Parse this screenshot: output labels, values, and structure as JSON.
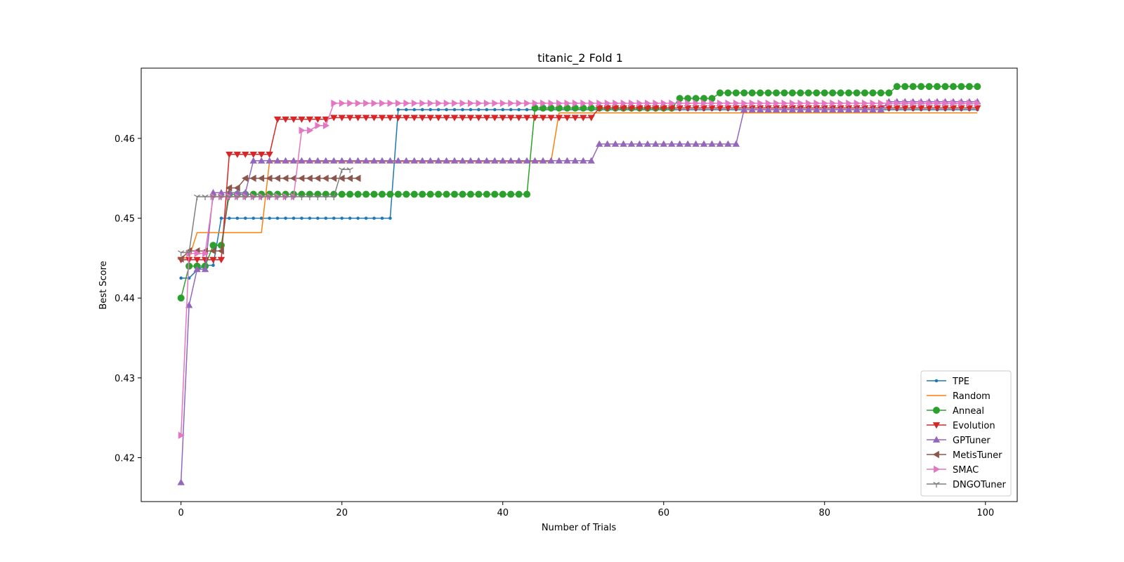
{
  "chart_data": {
    "type": "line",
    "title": "titanic_2 Fold 1",
    "xlabel": "Number of Trials",
    "ylabel": "Best Score",
    "xlim": [
      -4.95,
      103.95
    ],
    "ylim": [
      0.4145,
      0.4688
    ],
    "xticks": [
      0,
      20,
      40,
      60,
      80,
      100
    ],
    "yticks": [
      0.42,
      0.43,
      0.44,
      0.45,
      0.46
    ],
    "ytick_labels": [
      "0.42",
      "0.43",
      "0.44",
      "0.45",
      "0.46"
    ],
    "grid": false,
    "legend_position": "lower right",
    "series": [
      {
        "name": "TPE",
        "color": "#1f77b4",
        "marker": "point",
        "n": 100,
        "steps": [
          [
            0,
            0.4425
          ],
          [
            2,
            0.4435
          ],
          [
            3,
            0.4441
          ],
          [
            5,
            0.45
          ],
          [
            27,
            0.4636
          ],
          [
            51,
            0.4636
          ]
        ]
      },
      {
        "name": "Random",
        "color": "#ff7f0e",
        "marker": "none",
        "n": 100,
        "steps": [
          [
            0,
            0.445
          ],
          [
            2,
            0.4482
          ],
          [
            11,
            0.4571
          ],
          [
            47,
            0.4632
          ]
        ]
      },
      {
        "name": "Anneal",
        "color": "#2ca02c",
        "marker": "circle",
        "n": 100,
        "steps": [
          [
            0,
            0.44
          ],
          [
            1,
            0.444
          ],
          [
            4,
            0.4466
          ],
          [
            6,
            0.453
          ],
          [
            44,
            0.4638
          ],
          [
            62,
            0.465
          ],
          [
            67,
            0.4657
          ],
          [
            89,
            0.4665
          ]
        ]
      },
      {
        "name": "Evolution",
        "color": "#d62728",
        "marker": "triangle_down",
        "n": 100,
        "steps": [
          [
            0,
            0.4448
          ],
          [
            6,
            0.458
          ],
          [
            12,
            0.4624
          ],
          [
            19,
            0.4626
          ],
          [
            52,
            0.4638
          ]
        ]
      },
      {
        "name": "GPTuner",
        "color": "#9467bd",
        "marker": "triangle_up",
        "n": 100,
        "steps": [
          [
            0,
            0.4169
          ],
          [
            1,
            0.4391
          ],
          [
            2,
            0.4436
          ],
          [
            4,
            0.4532
          ],
          [
            9,
            0.4572
          ],
          [
            52,
            0.4593
          ],
          [
            70,
            0.4636
          ],
          [
            88,
            0.4646
          ]
        ]
      },
      {
        "name": "MetisTuner",
        "color": "#8c564b",
        "marker": "triangle_left",
        "n": 23,
        "steps": [
          [
            0,
            0.4449
          ],
          [
            1,
            0.4459
          ],
          [
            6,
            0.4538
          ],
          [
            8,
            0.455
          ]
        ]
      },
      {
        "name": "SMAC",
        "color": "#e377c2",
        "marker": "triangle_right",
        "n": 100,
        "steps": [
          [
            0,
            0.4228
          ],
          [
            1,
            0.4456
          ],
          [
            4,
            0.4527
          ],
          [
            15,
            0.461
          ],
          [
            17,
            0.4616
          ],
          [
            19,
            0.4644
          ],
          [
            47,
            0.4644
          ],
          [
            88,
            0.4644
          ]
        ]
      },
      {
        "name": "DNGOTuner",
        "color": "#7f7f7f",
        "marker": "tri_down",
        "n": 22,
        "steps": [
          [
            0,
            0.4457
          ],
          [
            2,
            0.4527
          ],
          [
            20,
            0.4561
          ]
        ]
      }
    ]
  }
}
